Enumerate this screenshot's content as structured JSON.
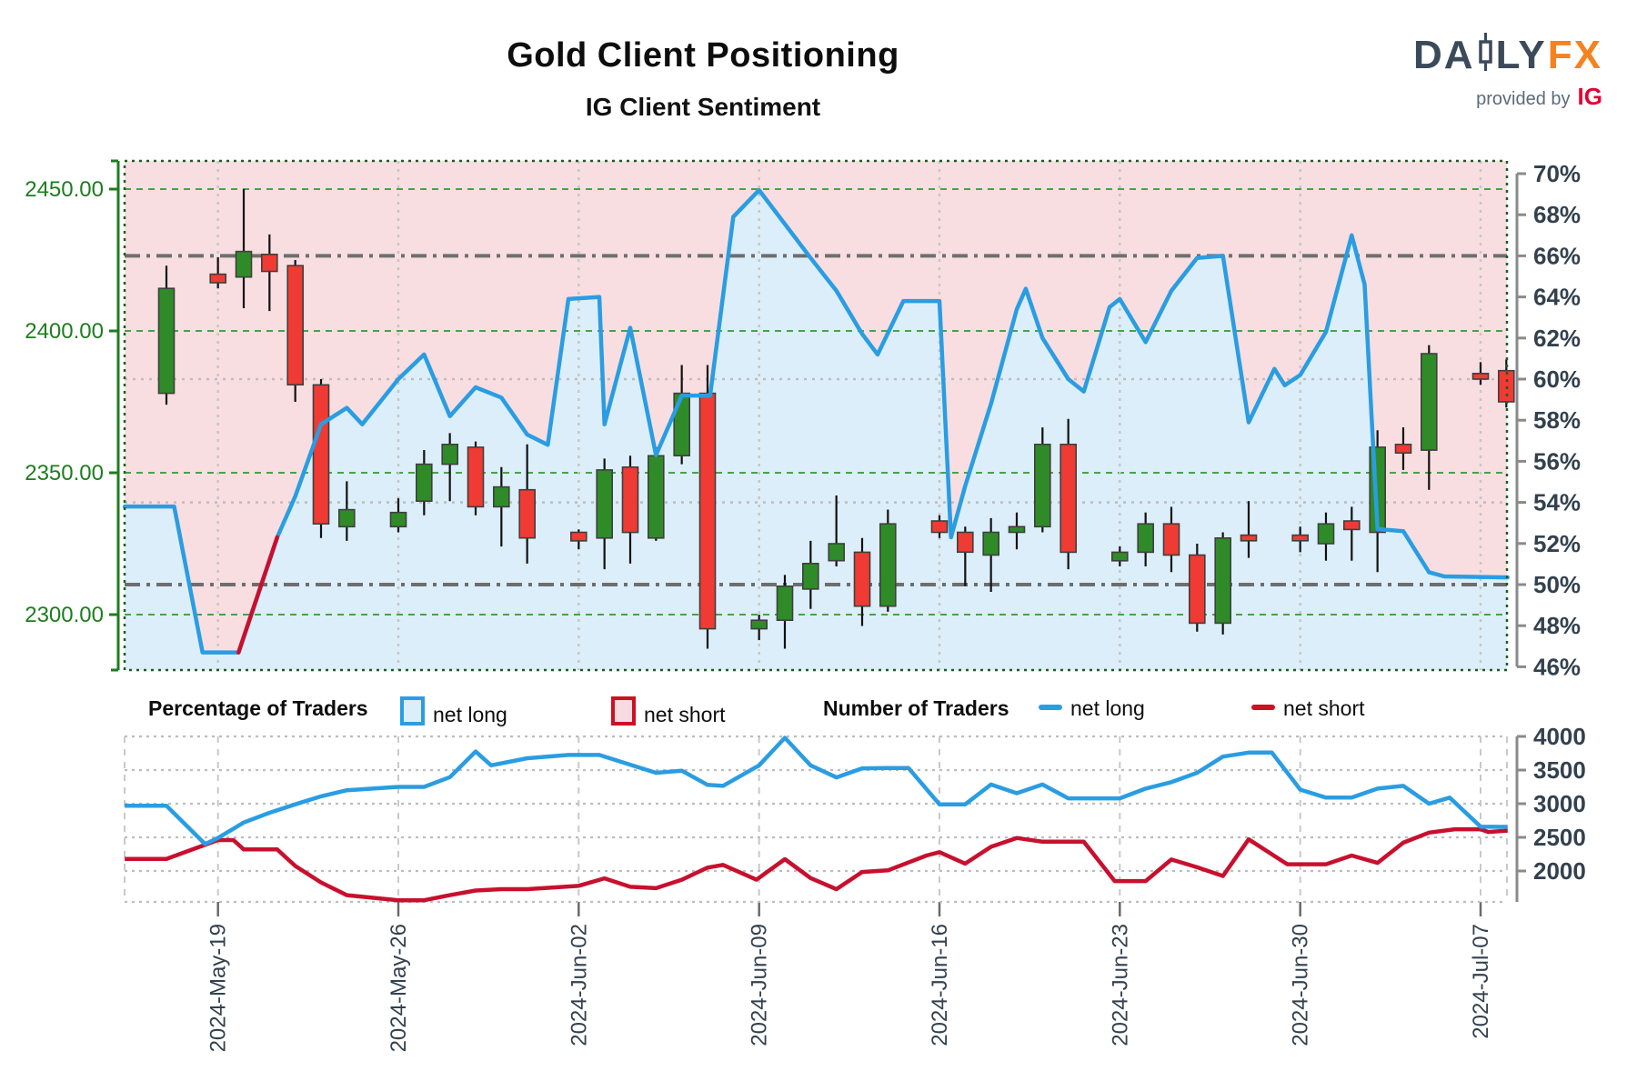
{
  "title": "Gold Client Positioning",
  "subtitle": "IG Client Sentiment",
  "logo": {
    "brand_left": "DA",
    "brand_right": "LY",
    "brand_accent": "FX",
    "tagline": "provided by",
    "tagline_brand": "IG"
  },
  "legend": {
    "groups": [
      {
        "title": "Percentage of Traders",
        "items": [
          {
            "label": "net long"
          },
          {
            "label": "net short"
          }
        ]
      },
      {
        "title": "Number of Traders",
        "items": [
          {
            "label": "net long"
          },
          {
            "label": "net short"
          }
        ]
      }
    ]
  },
  "colors": {
    "sentiment_line_blue": "#2a9de2",
    "sentiment_line_red": "#c8102e",
    "net_long_area": "#dceef9",
    "net_short_area": "#f8dee1",
    "candle_up": "#2f8b28",
    "candle_down": "#ef3b33",
    "candle_border": "#3f3f3f",
    "price_label_green": "#1e7d1e",
    "grid_green": "#46a349",
    "axis_slate": "#33414e",
    "threshold_gray": "#6e6e6e",
    "minor_grid_gray": "#bdbdbd"
  },
  "chart_data": [
    {
      "type": "candlestick+area",
      "title": "IG Client Sentiment",
      "price_axis": {
        "labels": [
          "2450.00",
          "2400.00",
          "2350.00",
          "2300.00"
        ],
        "values": [
          2450,
          2400,
          2350,
          2300
        ]
      },
      "percent_axis": {
        "labels": [
          "70%",
          "68%",
          "66%",
          "64%",
          "62%",
          "60%",
          "58%",
          "56%",
          "54%",
          "52%",
          "50%",
          "48%",
          "46%"
        ],
        "values": [
          70,
          68,
          66,
          64,
          62,
          60,
          58,
          56,
          54,
          52,
          50,
          48,
          46
        ]
      },
      "percent_thresholds_dashdot": [
        66,
        50
      ],
      "percent_gridlines_dotted": [
        60,
        54
      ],
      "x_axis": {
        "labels": [
          "2024-May-19",
          "2024-May-26",
          "2024-Jun-02",
          "2024-Jun-09",
          "2024-Jun-16",
          "2024-Jun-23",
          "2024-Jun-30",
          "2024-Jul-07"
        ],
        "day_offsets": [
          2,
          9,
          16,
          23,
          30,
          37,
          44,
          51
        ]
      },
      "candles_format": [
        "date",
        "day",
        "open",
        "high",
        "low",
        "close"
      ],
      "candles": [
        [
          "May-17",
          0,
          2378,
          2423,
          2374,
          2415
        ],
        [
          "May-19",
          2,
          2420,
          2426,
          2415,
          2417
        ],
        [
          "May-20",
          3,
          2419,
          2450,
          2408,
          2428
        ],
        [
          "May-21",
          4,
          2427,
          2434,
          2407,
          2421
        ],
        [
          "May-22",
          5,
          2423,
          2425,
          2375,
          2381
        ],
        [
          "May-23",
          6,
          2381,
          2383,
          2327,
          2332
        ],
        [
          "May-24",
          7,
          2331,
          2347,
          2326,
          2337
        ],
        [
          "May-26",
          9,
          2331,
          2341,
          2329,
          2336
        ],
        [
          "May-27",
          10,
          2340,
          2358,
          2335,
          2353
        ],
        [
          "May-28",
          11,
          2353,
          2364,
          2340,
          2360
        ],
        [
          "May-29",
          12,
          2359,
          2361,
          2335,
          2338
        ],
        [
          "May-30",
          13,
          2338,
          2352,
          2324,
          2345
        ],
        [
          "May-31",
          14,
          2344,
          2360,
          2318,
          2327
        ],
        [
          "Jun-02",
          16,
          2329,
          2330,
          2323,
          2326
        ],
        [
          "Jun-03",
          17,
          2327,
          2355,
          2316,
          2351
        ],
        [
          "Jun-04",
          18,
          2352,
          2356,
          2318,
          2329
        ],
        [
          "Jun-05",
          19,
          2327,
          2359,
          2326,
          2356
        ],
        [
          "Jun-06",
          20,
          2356,
          2388,
          2353,
          2378
        ],
        [
          "Jun-07",
          21,
          2378,
          2388,
          2288,
          2295
        ],
        [
          "Jun-09",
          23,
          2295,
          2300,
          2291,
          2298
        ],
        [
          "Jun-10",
          24,
          2298,
          2314,
          2288,
          2310
        ],
        [
          "Jun-11",
          25,
          2309,
          2326,
          2302,
          2318
        ],
        [
          "Jun-12",
          26,
          2319,
          2342,
          2317,
          2325
        ],
        [
          "Jun-13",
          27,
          2322,
          2327,
          2296,
          2303
        ],
        [
          "Jun-14",
          28,
          2303,
          2337,
          2301,
          2332
        ],
        [
          "Jun-16",
          30,
          2333,
          2335,
          2327,
          2329
        ],
        [
          "Jun-17",
          31,
          2329,
          2331,
          2310,
          2322
        ],
        [
          "Jun-18",
          32,
          2321,
          2334,
          2308,
          2329
        ],
        [
          "Jun-19",
          33,
          2329,
          2336,
          2323,
          2331
        ],
        [
          "Jun-20",
          34,
          2331,
          2366,
          2329,
          2360
        ],
        [
          "Jun-21",
          35,
          2360,
          2369,
          2316,
          2322
        ],
        [
          "Jun-23",
          37,
          2319,
          2324,
          2317,
          2322
        ],
        [
          "Jun-24",
          38,
          2322,
          2336,
          2317,
          2332
        ],
        [
          "Jun-25",
          39,
          2332,
          2338,
          2315,
          2321
        ],
        [
          "Jun-26",
          40,
          2321,
          2325,
          2294,
          2297
        ],
        [
          "Jun-27",
          41,
          2297,
          2329,
          2293,
          2327
        ],
        [
          "Jun-28",
          42,
          2328,
          2340,
          2320,
          2326
        ],
        [
          "Jun-30",
          44,
          2328,
          2331,
          2322,
          2326
        ],
        [
          "Jul-01",
          45,
          2325,
          2336,
          2319,
          2332
        ],
        [
          "Jul-02",
          46,
          2333,
          2338,
          2319,
          2330
        ],
        [
          "Jul-03",
          47,
          2329,
          2365,
          2315,
          2359
        ],
        [
          "Jul-04",
          48,
          2360,
          2366,
          2351,
          2357
        ],
        [
          "Jul-05",
          49,
          2358,
          2395,
          2344,
          2392
        ],
        [
          "Jul-07",
          51,
          2385,
          2389,
          2381,
          2383
        ],
        [
          "Jul-08",
          52,
          2386,
          2390,
          2373,
          2375
        ]
      ],
      "net_long_pct_points": [
        [
          -1.62,
          53.8
        ],
        [
          0,
          53.8
        ],
        [
          0.3,
          53.8
        ],
        [
          1.4,
          46.7
        ],
        [
          2.8,
          46.7
        ],
        [
          4.3,
          52.3
        ],
        [
          5,
          54.3
        ],
        [
          6,
          57.8
        ],
        [
          7,
          58.6
        ],
        [
          7.6,
          57.8
        ],
        [
          9,
          60.0
        ],
        [
          10,
          61.2
        ],
        [
          11,
          58.2
        ],
        [
          12,
          59.6
        ],
        [
          13,
          59.1
        ],
        [
          14,
          57.3
        ],
        [
          14.8,
          56.8
        ],
        [
          15.6,
          63.9
        ],
        [
          16.8,
          64.0
        ],
        [
          17,
          57.8
        ],
        [
          18,
          62.5
        ],
        [
          19,
          56.3
        ],
        [
          20,
          59.2
        ],
        [
          21.1,
          59.2
        ],
        [
          22,
          67.9
        ],
        [
          23,
          69.2
        ],
        [
          25,
          65.9
        ],
        [
          26,
          64.3
        ],
        [
          27,
          62.2
        ],
        [
          27.6,
          61.2
        ],
        [
          28.6,
          63.8
        ],
        [
          30,
          63.8
        ],
        [
          30.45,
          52.3
        ],
        [
          31,
          54.8
        ],
        [
          32,
          58.8
        ],
        [
          33,
          63.4
        ],
        [
          33.35,
          64.4
        ],
        [
          34,
          62.0
        ],
        [
          35,
          60.0
        ],
        [
          35.6,
          59.4
        ],
        [
          36.6,
          63.5
        ],
        [
          37,
          63.9
        ],
        [
          38,
          61.8
        ],
        [
          39,
          64.3
        ],
        [
          40,
          65.9
        ],
        [
          41,
          66.0
        ],
        [
          42,
          57.9
        ],
        [
          43,
          60.5
        ],
        [
          43.4,
          59.7
        ],
        [
          44,
          60.2
        ],
        [
          45,
          62.3
        ],
        [
          46,
          67.0
        ],
        [
          46.5,
          64.6
        ],
        [
          47,
          52.7
        ],
        [
          48,
          52.6
        ],
        [
          49,
          50.6
        ],
        [
          49.6,
          50.4
        ],
        [
          52.05,
          50.35
        ]
      ],
      "net_long_red_segment": [
        [
          2.8,
          46.7
        ],
        [
          4.3,
          52.3
        ]
      ]
    },
    {
      "type": "line",
      "count_axis": {
        "labels": [
          "4000",
          "3500",
          "3000",
          "2500",
          "2000"
        ],
        "values": [
          4000,
          3500,
          3000,
          2500,
          2000
        ]
      },
      "series": [
        {
          "name": "net long",
          "points": [
            [
              -1.62,
              2970
            ],
            [
              0,
              2970
            ],
            [
              1.5,
              2400
            ],
            [
              2,
              2490
            ],
            [
              3,
              2720
            ],
            [
              4,
              2865
            ],
            [
              5,
              2990
            ],
            [
              6,
              3110
            ],
            [
              7,
              3200
            ],
            [
              9,
              3250
            ],
            [
              10,
              3250
            ],
            [
              11,
              3395
            ],
            [
              12,
              3775
            ],
            [
              12.6,
              3570
            ],
            [
              14,
              3675
            ],
            [
              15.6,
              3725
            ],
            [
              16.8,
              3725
            ],
            [
              18,
              3580
            ],
            [
              19,
              3460
            ],
            [
              20,
              3490
            ],
            [
              21,
              3280
            ],
            [
              21.6,
              3265
            ],
            [
              23,
              3570
            ],
            [
              24,
              3980
            ],
            [
              25,
              3570
            ],
            [
              26,
              3390
            ],
            [
              27,
              3525
            ],
            [
              28,
              3530
            ],
            [
              28.8,
              3530
            ],
            [
              30,
              2990
            ],
            [
              31,
              2990
            ],
            [
              32,
              3285
            ],
            [
              33,
              3155
            ],
            [
              34,
              3285
            ],
            [
              35,
              3080
            ],
            [
              37,
              3080
            ],
            [
              38,
              3225
            ],
            [
              39,
              3320
            ],
            [
              40,
              3460
            ],
            [
              41,
              3700
            ],
            [
              42,
              3760
            ],
            [
              42.9,
              3760
            ],
            [
              44,
              3210
            ],
            [
              45,
              3090
            ],
            [
              46,
              3090
            ],
            [
              47,
              3225
            ],
            [
              48,
              3265
            ],
            [
              49,
              3000
            ],
            [
              49.8,
              3090
            ],
            [
              51,
              2660
            ],
            [
              52.05,
              2655
            ]
          ]
        },
        {
          "name": "net short",
          "points": [
            [
              -1.62,
              2180
            ],
            [
              0,
              2180
            ],
            [
              2,
              2460
            ],
            [
              2.6,
              2460
            ],
            [
              3,
              2320
            ],
            [
              4.3,
              2320
            ],
            [
              5,
              2075
            ],
            [
              6,
              1830
            ],
            [
              7,
              1640
            ],
            [
              9,
              1565
            ],
            [
              10,
              1565
            ],
            [
              11,
              1640
            ],
            [
              12,
              1710
            ],
            [
              13,
              1730
            ],
            [
              14,
              1730
            ],
            [
              16,
              1780
            ],
            [
              17,
              1890
            ],
            [
              18,
              1765
            ],
            [
              19,
              1745
            ],
            [
              20,
              1870
            ],
            [
              21,
              2050
            ],
            [
              21.6,
              2090
            ],
            [
              22.9,
              1870
            ],
            [
              24,
              2175
            ],
            [
              25,
              1895
            ],
            [
              26,
              1730
            ],
            [
              27,
              1985
            ],
            [
              28,
              2010
            ],
            [
              29.5,
              2230
            ],
            [
              30,
              2280
            ],
            [
              31,
              2110
            ],
            [
              32,
              2360
            ],
            [
              33,
              2490
            ],
            [
              34,
              2435
            ],
            [
              35.6,
              2435
            ],
            [
              36.8,
              1850
            ],
            [
              38,
              1850
            ],
            [
              39,
              2170
            ],
            [
              40,
              2055
            ],
            [
              41,
              1925
            ],
            [
              42,
              2470
            ],
            [
              43.5,
              2100
            ],
            [
              45,
              2100
            ],
            [
              46,
              2230
            ],
            [
              47,
              2120
            ],
            [
              48,
              2420
            ],
            [
              49,
              2570
            ],
            [
              50,
              2620
            ],
            [
              51,
              2620
            ],
            [
              51.3,
              2580
            ],
            [
              52.05,
              2600
            ]
          ]
        }
      ]
    }
  ]
}
